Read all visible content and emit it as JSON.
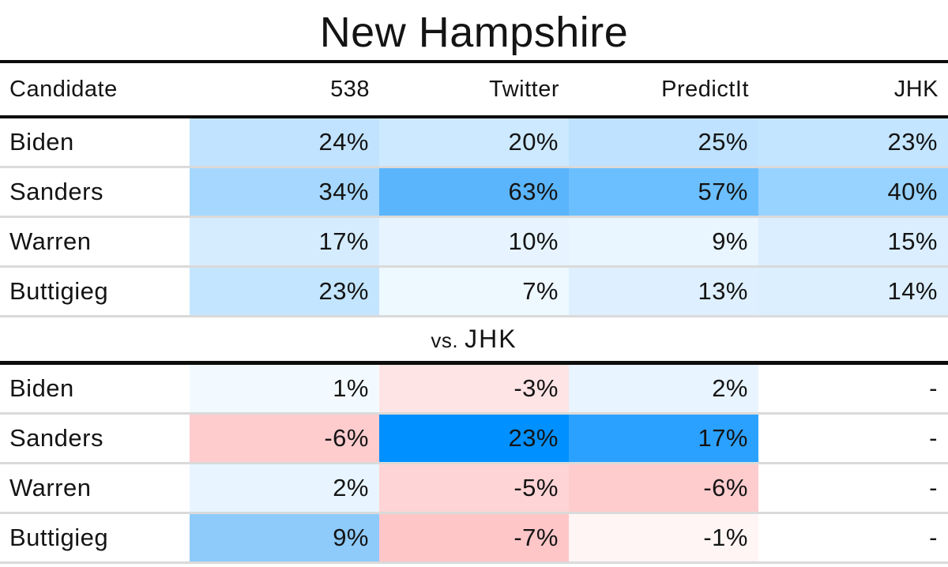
{
  "title": "New Hampshire",
  "columns": [
    "Candidate",
    "538",
    "Twitter",
    "PredictIt",
    "JHK"
  ],
  "divider": {
    "prefix": "vs.",
    "label": "JHK"
  },
  "main_table": {
    "rows": [
      {
        "candidate": "Biden",
        "cells": [
          {
            "text": "24%",
            "bg": "#c1e3ff"
          },
          {
            "text": "20%",
            "bg": "#cde9ff"
          },
          {
            "text": "25%",
            "bg": "#bee2ff"
          },
          {
            "text": "23%",
            "bg": "#c4e5ff"
          }
        ]
      },
      {
        "candidate": "Sanders",
        "cells": [
          {
            "text": "34%",
            "bg": "#a6d8ff"
          },
          {
            "text": "63%",
            "bg": "#5bb5fc"
          },
          {
            "text": "57%",
            "bg": "#6cbfff"
          },
          {
            "text": "40%",
            "bg": "#98d2ff"
          }
        ]
      },
      {
        "candidate": "Warren",
        "cells": [
          {
            "text": "17%",
            "bg": "#d5ecff"
          },
          {
            "text": "10%",
            "bg": "#e7f4ff"
          },
          {
            "text": "9%",
            "bg": "#e9f5ff"
          },
          {
            "text": "15%",
            "bg": "#daeeff"
          }
        ]
      },
      {
        "candidate": "Buttigieg",
        "cells": [
          {
            "text": "23%",
            "bg": "#c4e5ff"
          },
          {
            "text": "7%",
            "bg": "#eef8ff"
          },
          {
            "text": "13%",
            "bg": "#def0ff"
          },
          {
            "text": "14%",
            "bg": "#dcefff"
          }
        ]
      }
    ]
  },
  "diff_table": {
    "rows": [
      {
        "candidate": "Biden",
        "cells": [
          {
            "text": "1%",
            "bg": "#f3faff"
          },
          {
            "text": "-3%",
            "bg": "#ffe4e5"
          },
          {
            "text": "2%",
            "bg": "#e8f4ff"
          },
          {
            "text": "-",
            "bg": "#ffffff"
          }
        ]
      },
      {
        "candidate": "Sanders",
        "cells": [
          {
            "text": "-6%",
            "bg": "#ffccce"
          },
          {
            "text": "23%",
            "bg": "#0090ff"
          },
          {
            "text": "17%",
            "bg": "#2ba1ff"
          },
          {
            "text": "-",
            "bg": "#ffffff"
          }
        ]
      },
      {
        "candidate": "Warren",
        "cells": [
          {
            "text": "2%",
            "bg": "#e8f4ff"
          },
          {
            "text": "-5%",
            "bg": "#ffd4d6"
          },
          {
            "text": "-6%",
            "bg": "#ffccce"
          },
          {
            "text": "-",
            "bg": "#ffffff"
          }
        ]
      },
      {
        "candidate": "Buttigieg",
        "cells": [
          {
            "text": "9%",
            "bg": "#8ecbfb"
          },
          {
            "text": "-7%",
            "bg": "#ffc6c8"
          },
          {
            "text": "-1%",
            "bg": "#fff5f5"
          },
          {
            "text": "-",
            "bg": "#ffffff"
          }
        ]
      }
    ]
  },
  "colors": {
    "rule": "#0d0d0d",
    "row_separator": "#dadada",
    "text": "#141414",
    "heat_blue_max": "#0090ff",
    "heat_red": "#ff414b",
    "background": "#ffffff"
  },
  "chart_data": [
    {
      "type": "heatmap",
      "title": "New Hampshire",
      "rows": [
        "Biden",
        "Sanders",
        "Warren",
        "Buttigieg"
      ],
      "columns": [
        "538",
        "Twitter",
        "PredictIt",
        "JHK"
      ],
      "values": [
        [
          24,
          20,
          25,
          23
        ],
        [
          34,
          63,
          57,
          40
        ],
        [
          17,
          10,
          9,
          15
        ],
        [
          23,
          7,
          13,
          14
        ]
      ],
      "unit": "%",
      "colorscale": "white (0%) to blue #0090ff (high)"
    },
    {
      "type": "heatmap",
      "title": "vs. JHK",
      "rows": [
        "Biden",
        "Sanders",
        "Warren",
        "Buttigieg"
      ],
      "columns": [
        "538",
        "Twitter",
        "PredictIt",
        "JHK"
      ],
      "values": [
        [
          1,
          -3,
          2,
          null
        ],
        [
          -6,
          23,
          17,
          null
        ],
        [
          2,
          -5,
          -6,
          null
        ],
        [
          9,
          -7,
          -1,
          null
        ]
      ],
      "unit": "%",
      "colorscale": "pink/red for negative, blue for positive, white at 0",
      "note": "JHK column displayed as a dash"
    }
  ]
}
